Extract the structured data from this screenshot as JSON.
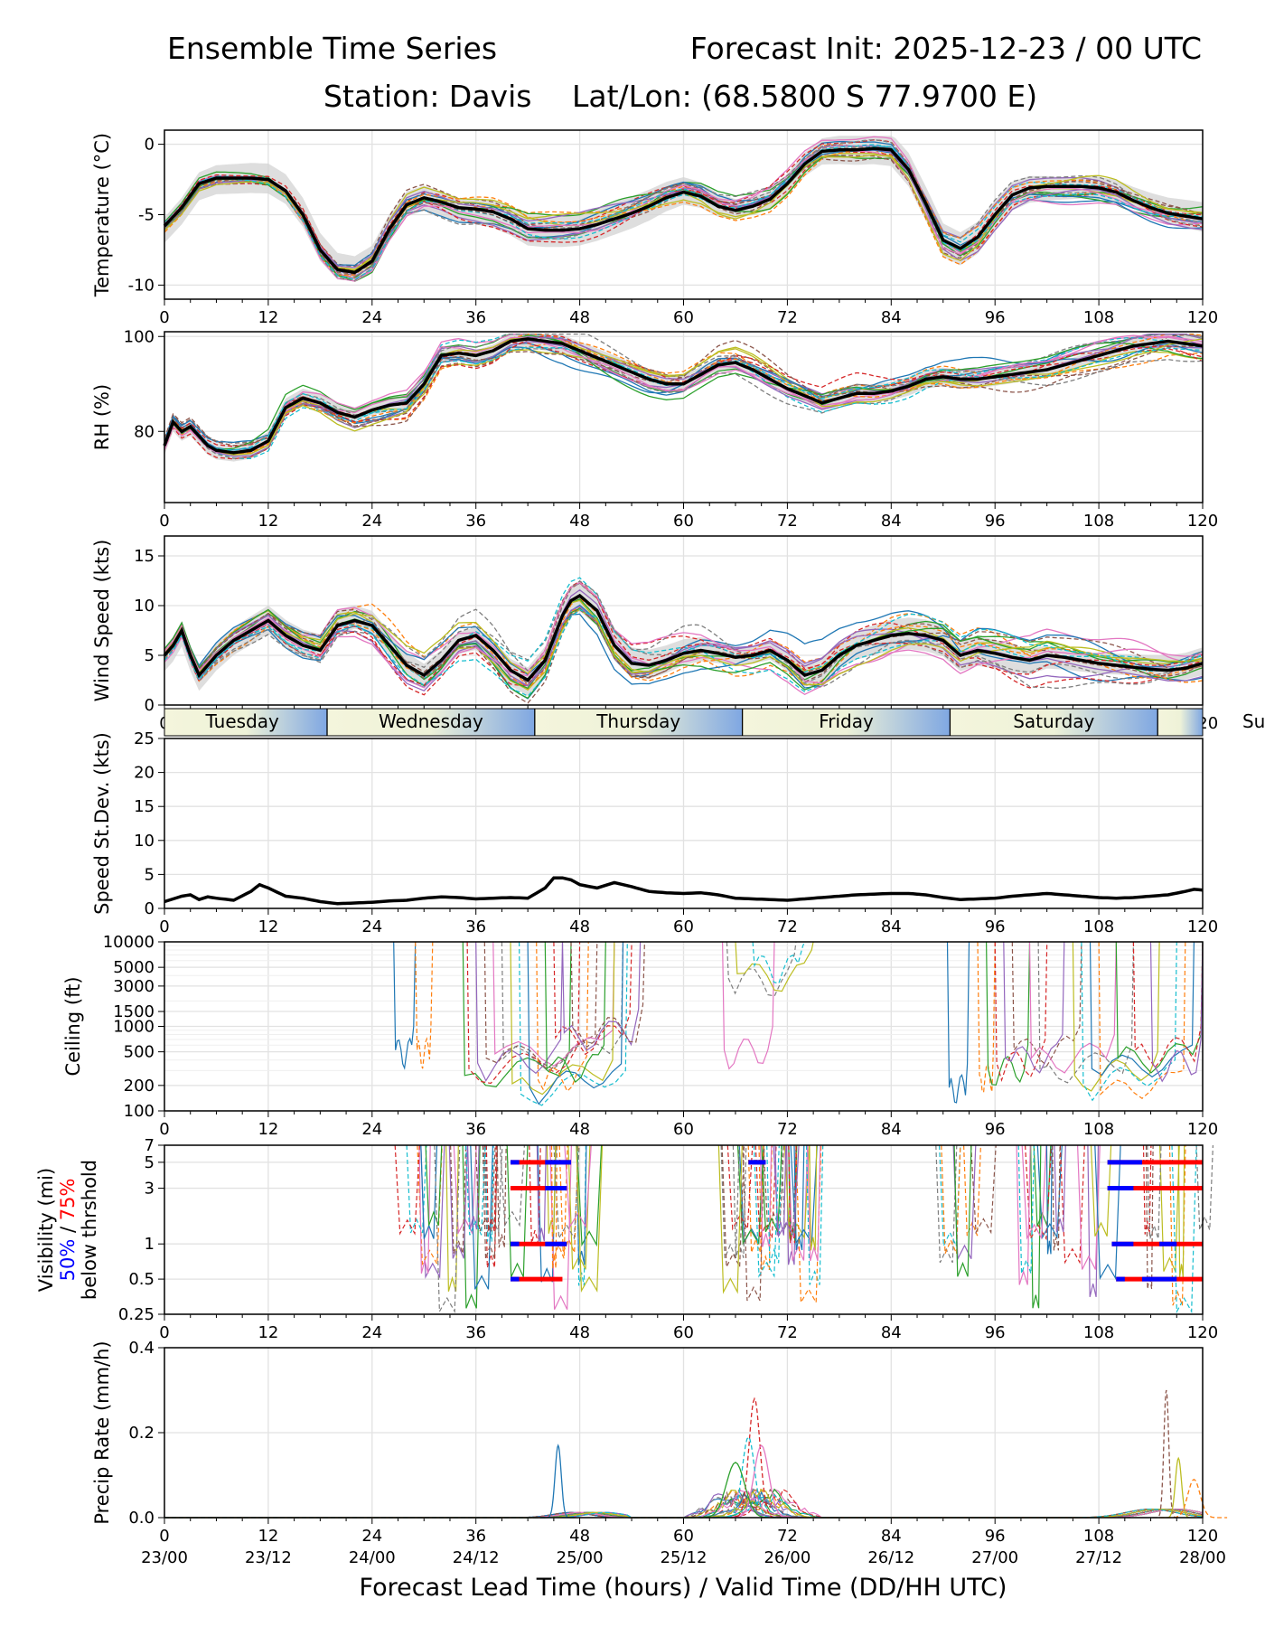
{
  "header": {
    "title_left": "Ensemble Time Series",
    "title_right": "Forecast Init: 2025-12-23 / 00 UTC",
    "station": "Station: Davis",
    "latlon": "Lat/Lon: (68.5800 S 77.9700 E)"
  },
  "colors": {
    "mean": "#000000",
    "spread": "#d3d3d3",
    "grid": "#e2e2e2",
    "vis50": "#0000ff",
    "vis75": "#ff0000",
    "members": [
      "#1f77b4",
      "#ff7f0e",
      "#2ca02c",
      "#d62728",
      "#9467bd",
      "#8c564b",
      "#e377c2",
      "#7f7f7f",
      "#bcbd22",
      "#17becf"
    ],
    "day_band_dark": "#7ea6e0",
    "day_band_light": "#f2f4dc"
  },
  "days": {
    "labels": [
      "Tuesday",
      "Wednesday",
      "Thursday",
      "Friday",
      "Saturday",
      "Sunday"
    ],
    "boundaries_hours": [
      18.8,
      42.8,
      66.8,
      90.8,
      114.8
    ]
  },
  "x_axis": {
    "ticks": [
      0,
      12,
      24,
      36,
      48,
      60,
      72,
      84,
      96,
      108,
      120
    ],
    "valid_times": [
      "23/00",
      "23/12",
      "24/00",
      "24/12",
      "25/00",
      "25/12",
      "26/00",
      "26/12",
      "27/00",
      "27/12",
      "28/00"
    ],
    "xlabel": "Forecast Lead Time (hours) / Valid Time (DD/HH UTC)"
  },
  "chart_data": [
    {
      "id": "temperature",
      "type": "line",
      "ylabel": "Temperature (°C)",
      "ylim": [
        -11,
        1
      ],
      "yticks": [
        0,
        -5,
        -10
      ],
      "mean": {
        "x": [
          0,
          2,
          4,
          6,
          8,
          10,
          12,
          14,
          16,
          18,
          20,
          22,
          24,
          26,
          28,
          30,
          32,
          34,
          36,
          38,
          40,
          42,
          44,
          46,
          48,
          50,
          52,
          54,
          56,
          58,
          60,
          62,
          64,
          66,
          68,
          70,
          72,
          74,
          76,
          78,
          80,
          82,
          84,
          86,
          88,
          90,
          92,
          94,
          96,
          98,
          100,
          102,
          104,
          106,
          108,
          110,
          112,
          114,
          116,
          118,
          120
        ],
        "y": [
          -5.8,
          -4.5,
          -2.8,
          -2.4,
          -2.4,
          -2.4,
          -2.5,
          -3.3,
          -5.0,
          -7.5,
          -8.9,
          -9.1,
          -8.3,
          -6.0,
          -4.3,
          -3.8,
          -4.1,
          -4.5,
          -4.6,
          -4.8,
          -5.3,
          -6.0,
          -6.1,
          -6.1,
          -6.0,
          -5.7,
          -5.3,
          -4.9,
          -4.4,
          -3.8,
          -3.4,
          -3.7,
          -4.4,
          -4.7,
          -4.4,
          -3.9,
          -2.8,
          -1.4,
          -0.5,
          -0.4,
          -0.4,
          -0.3,
          -0.4,
          -1.8,
          -4.2,
          -6.8,
          -7.4,
          -6.6,
          -5.0,
          -3.6,
          -3.1,
          -3.0,
          -3.0,
          -3.0,
          -3.1,
          -3.4,
          -4.0,
          -4.5,
          -4.9,
          -5.1,
          -5.3
        ]
      },
      "spread": [
        0.3,
        1.2,
        2.0
      ]
    },
    {
      "id": "rh",
      "type": "line",
      "ylabel": "RH (%)",
      "ylim": [
        65,
        101
      ],
      "yticks": [
        100,
        80
      ],
      "mean": {
        "x": [
          0,
          1,
          2,
          3,
          4,
          5,
          6,
          8,
          10,
          12,
          14,
          16,
          18,
          20,
          22,
          24,
          26,
          28,
          30,
          32,
          34,
          36,
          38,
          40,
          42,
          44,
          46,
          48,
          50,
          52,
          54,
          56,
          58,
          60,
          62,
          64,
          66,
          68,
          70,
          72,
          74,
          76,
          78,
          80,
          82,
          84,
          86,
          88,
          90,
          92,
          94,
          96,
          98,
          100,
          102,
          104,
          106,
          108,
          110,
          112,
          114,
          116,
          118,
          120
        ],
        "y": [
          77,
          82,
          80,
          81,
          79,
          77,
          76,
          75.5,
          76,
          78,
          85,
          87,
          86,
          84,
          83,
          84.5,
          85.5,
          86,
          90,
          96,
          96.5,
          96,
          97,
          99,
          99.5,
          99,
          98.5,
          97,
          95.5,
          94,
          92.5,
          91,
          90,
          90,
          92,
          94,
          94.5,
          93,
          91,
          89,
          87.5,
          86,
          87,
          88,
          88,
          88.5,
          89.5,
          91,
          91.5,
          91,
          91,
          91.5,
          92,
          92.5,
          93,
          94,
          95,
          96,
          97,
          98,
          98.5,
          99,
          98.5,
          98
        ]
      },
      "spread": [
        0.5,
        2.0,
        3.5
      ]
    },
    {
      "id": "wind",
      "type": "line",
      "ylabel": "Wind Speed (kts)",
      "ylim": [
        0,
        17
      ],
      "yticks": [
        0,
        5,
        10,
        15
      ],
      "mean": {
        "x": [
          0,
          1,
          2,
          3,
          4,
          6,
          8,
          10,
          12,
          14,
          16,
          18,
          20,
          22,
          24,
          26,
          28,
          30,
          32,
          34,
          36,
          38,
          40,
          42,
          44,
          46,
          47,
          48,
          50,
          52,
          54,
          56,
          58,
          60,
          62,
          64,
          66,
          68,
          70,
          72,
          74,
          76,
          78,
          80,
          82,
          84,
          86,
          88,
          90,
          92,
          94,
          96,
          98,
          100,
          102,
          104,
          106,
          108,
          110,
          112,
          114,
          116,
          118,
          120
        ],
        "y": [
          5,
          6,
          7.5,
          5,
          3,
          5,
          6.5,
          7.5,
          8.5,
          7,
          6,
          5.5,
          8,
          8.5,
          8,
          6,
          4,
          3,
          4.5,
          6.5,
          7,
          5.5,
          3.5,
          2.5,
          4.5,
          9,
          10.5,
          11,
          9.5,
          6,
          4.2,
          4,
          4.5,
          5.2,
          5.5,
          5.2,
          4.8,
          5,
          5.5,
          4.5,
          3,
          3.5,
          5,
          6,
          6.5,
          7,
          7.2,
          7,
          6.5,
          5,
          5.5,
          5.2,
          4.8,
          4.5,
          5,
          4.8,
          4.5,
          4.2,
          4,
          3.8,
          3.6,
          3.5,
          3.7,
          4.2
        ]
      },
      "spread": [
        0.8,
        1.6,
        2.4
      ]
    },
    {
      "id": "stdev",
      "type": "line",
      "ylabel": "Speed St.Dev. (kts)",
      "ylim": [
        0,
        25
      ],
      "yticks": [
        0,
        5,
        10,
        15,
        20,
        25
      ],
      "mean": {
        "x": [
          0,
          2,
          3,
          4,
          5,
          6,
          8,
          10,
          11,
          12,
          14,
          16,
          18,
          20,
          22,
          24,
          26,
          28,
          30,
          32,
          34,
          36,
          38,
          40,
          42,
          44,
          45,
          46,
          47,
          48,
          50,
          52,
          54,
          56,
          58,
          60,
          62,
          64,
          66,
          68,
          70,
          72,
          74,
          76,
          78,
          80,
          82,
          84,
          86,
          88,
          90,
          92,
          94,
          96,
          98,
          100,
          102,
          104,
          106,
          108,
          110,
          112,
          114,
          116,
          118,
          119,
          120
        ],
        "y": [
          1.0,
          1.8,
          2.0,
          1.3,
          1.7,
          1.5,
          1.2,
          2.5,
          3.5,
          3.0,
          1.8,
          1.5,
          1.0,
          0.7,
          0.8,
          0.9,
          1.1,
          1.2,
          1.5,
          1.7,
          1.6,
          1.4,
          1.5,
          1.6,
          1.5,
          3.0,
          4.5,
          4.5,
          4.2,
          3.5,
          3.0,
          3.8,
          3.2,
          2.5,
          2.3,
          2.2,
          2.3,
          2.0,
          1.5,
          1.4,
          1.3,
          1.2,
          1.4,
          1.6,
          1.8,
          2.0,
          2.1,
          2.2,
          2.2,
          2.0,
          1.6,
          1.3,
          1.4,
          1.5,
          1.8,
          2.0,
          2.2,
          2.0,
          1.8,
          1.6,
          1.5,
          1.6,
          1.8,
          2.0,
          2.5,
          2.8,
          2.7
        ]
      }
    },
    {
      "id": "ceiling",
      "type": "line",
      "ylabel": "Ceiling (ft)",
      "scale": "log",
      "ylim": [
        100,
        10000
      ],
      "yticks": [
        100,
        200,
        500,
        1000,
        1500,
        3000,
        5000,
        10000
      ],
      "ytick_labels": [
        "100",
        "200",
        "500",
        "1000",
        "1500",
        "3000",
        "5000",
        "10000"
      ]
    },
    {
      "id": "visibility",
      "type": "line",
      "scale": "log",
      "ylabel_lines": [
        "Visibility (mi)",
        "50%",
        " / ",
        "75%",
        "below thrshold"
      ],
      "ylim": [
        0.25,
        7
      ],
      "yticks": [
        0.25,
        0.5,
        1,
        3,
        5,
        7
      ],
      "ytick_labels": [
        "0.25",
        "0.5",
        "1",
        "3",
        "5",
        "7"
      ],
      "threshold_markers": [
        {
          "y": 5,
          "start": 40,
          "end": 47,
          "blue_segments": [
            [
              40,
              41
            ],
            [
              44,
              47
            ]
          ]
        },
        {
          "y": 3,
          "start": 40,
          "end": 46.5,
          "blue_segments": [
            [
              44,
              46.5
            ]
          ]
        },
        {
          "y": 1,
          "start": 40,
          "end": 46.5,
          "blue_segments": [
            [
              40,
              41
            ],
            [
              44,
              46.5
            ]
          ]
        },
        {
          "y": 0.5,
          "start": 40,
          "end": 46,
          "blue_segments": [
            [
              40,
              41
            ]
          ]
        },
        {
          "y": 5,
          "start": 67.5,
          "end": 69.5,
          "blue_segments": [
            [
              67.5,
              69.5
            ]
          ]
        },
        {
          "y": 5,
          "start": 109,
          "end": 120,
          "blue_segments": [
            [
              109,
              113
            ]
          ]
        },
        {
          "y": 3,
          "start": 109,
          "end": 120,
          "blue_segments": [
            [
              109,
              112
            ]
          ]
        },
        {
          "y": 1,
          "start": 109.5,
          "end": 120,
          "blue_segments": [
            [
              109.5,
              112
            ],
            [
              115,
              117
            ]
          ]
        },
        {
          "y": 0.5,
          "start": 110,
          "end": 120,
          "blue_segments": [
            [
              110,
              111
            ],
            [
              113,
              117
            ]
          ]
        }
      ]
    },
    {
      "id": "precip",
      "type": "line",
      "ylabel": "Precip Rate (mm/h)",
      "ylim": [
        0,
        0.4
      ],
      "yticks": [
        0.0,
        0.2,
        0.4
      ],
      "ytick_labels": [
        "0.0",
        "0.2",
        "0.4"
      ],
      "peaks": [
        {
          "x": 45.5,
          "y": 0.17,
          "w": 0.5
        },
        {
          "x": 68.2,
          "y": 0.28,
          "w": 0.9
        },
        {
          "x": 69.0,
          "y": 0.17,
          "w": 1.2
        },
        {
          "x": 67.5,
          "y": 0.19,
          "w": 1.0
        },
        {
          "x": 66.0,
          "y": 0.13,
          "w": 1.5
        },
        {
          "x": 115.8,
          "y": 0.3,
          "w": 0.4
        },
        {
          "x": 117.2,
          "y": 0.14,
          "w": 0.5
        },
        {
          "x": 119,
          "y": 0.09,
          "w": 1.0
        }
      ]
    }
  ]
}
